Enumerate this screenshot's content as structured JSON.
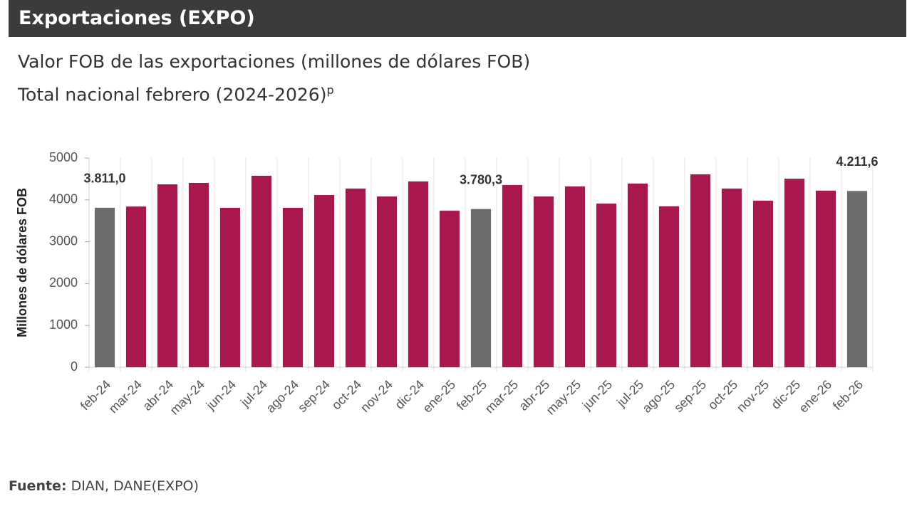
{
  "chart_data": {
    "type": "bar",
    "title": "Exportaciones (EXPO)",
    "subtitle": "Valor FOB de las exportaciones (millones de dólares FOB)",
    "subtitle2": "Total nacional febrero (2024-2026)",
    "subtitle2_sup": "p",
    "y_label": "Millones de dólares FOB",
    "categories": [
      "feb-24",
      "mar-24",
      "abr-24",
      "may-24",
      "jun-24",
      "jul-24",
      "ago-24",
      "sep-24",
      "oct-24",
      "nov-24",
      "dic-24",
      "ene-25",
      "feb-25",
      "mar-25",
      "abr-25",
      "may-25",
      "jun-25",
      "jul-25",
      "ago-25",
      "sep-25",
      "oct-25",
      "nov-25",
      "dic-25",
      "ene-26",
      "feb-26"
    ],
    "values": [
      3811.0,
      3840,
      4370,
      4405,
      3810,
      4575,
      3810,
      4115,
      4270,
      4080,
      4440,
      3740,
      3780.3,
      4355,
      4080,
      4320,
      3910,
      4390,
      3845,
      4610,
      4270,
      3980,
      4505,
      4220,
      4211.6
    ],
    "value_labels": [
      "3.811,0",
      null,
      null,
      null,
      null,
      null,
      null,
      null,
      null,
      null,
      null,
      null,
      "3.780,3",
      null,
      null,
      null,
      null,
      null,
      null,
      null,
      null,
      null,
      null,
      null,
      "4.211,6"
    ],
    "colors": [
      "#6b6b6b",
      "#a8174e",
      "#a8174e",
      "#a8174e",
      "#a8174e",
      "#a8174e",
      "#a8174e",
      "#a8174e",
      "#a8174e",
      "#a8174e",
      "#a8174e",
      "#a8174e",
      "#6b6b6b",
      "#a8174e",
      "#a8174e",
      "#a8174e",
      "#a8174e",
      "#a8174e",
      "#a8174e",
      "#a8174e",
      "#a8174e",
      "#a8174e",
      "#a8174e",
      "#a8174e",
      "#6b6b6b"
    ],
    "ylim": [
      0,
      5000
    ],
    "yticks": [
      0,
      1000,
      2000,
      3000,
      4000,
      5000
    ],
    "grid": true,
    "source_label": "Fuente:",
    "source": "DIAN, DANE(EXPO)"
  }
}
